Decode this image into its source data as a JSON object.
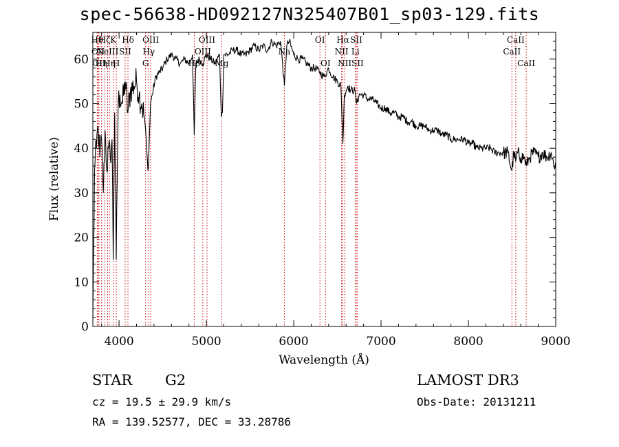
{
  "chart_data": {
    "type": "line",
    "title": "spec-56638-HD092127N325407B01_sp03-129.fits",
    "xlabel": "Wavelength (Å)",
    "ylabel": "Flux (relative)",
    "xlim": [
      3700,
      9000
    ],
    "ylim": [
      0,
      66
    ],
    "xticks": [
      4000,
      5000,
      6000,
      7000,
      8000,
      9000
    ],
    "yticks": [
      0,
      10,
      20,
      30,
      40,
      50,
      60
    ],
    "series": [
      {
        "name": "spectrum",
        "x": [
          3700,
          3720,
          3740,
          3760,
          3780,
          3800,
          3820,
          3840,
          3860,
          3880,
          3900,
          3920,
          3933,
          3950,
          3968,
          3990,
          4010,
          4040,
          4070,
          4101,
          4130,
          4170,
          4200,
          4230,
          4260,
          4290,
          4310,
          4330,
          4340,
          4360,
          4380,
          4420,
          4460,
          4500,
          4550,
          4600,
          4650,
          4700,
          4750,
          4800,
          4840,
          4861,
          4880,
          4920,
          4960,
          5000,
          5050,
          5100,
          5150,
          5172,
          5183,
          5200,
          5250,
          5300,
          5350,
          5400,
          5450,
          5500,
          5550,
          5600,
          5650,
          5700,
          5750,
          5800,
          5850,
          5893,
          5920,
          5950,
          6000,
          6050,
          6100,
          6150,
          6200,
          6250,
          6300,
          6350,
          6400,
          6450,
          6500,
          6540,
          6563,
          6580,
          6620,
          6650,
          6700,
          6720,
          6750,
          6800,
          6850,
          6900,
          6950,
          7000,
          7050,
          7100,
          7150,
          7200,
          7250,
          7300,
          7350,
          7400,
          7450,
          7500,
          7550,
          7600,
          7650,
          7700,
          7750,
          7800,
          7850,
          7900,
          7950,
          8000,
          8050,
          8100,
          8150,
          8200,
          8250,
          8300,
          8350,
          8400,
          8450,
          8498,
          8520,
          8542,
          8560,
          8600,
          8640,
          8662,
          8700,
          8750,
          8800,
          8850,
          8900,
          8950,
          8980,
          9000
        ],
        "y": [
          2,
          35,
          40,
          45,
          38,
          42,
          30,
          44,
          35,
          40,
          38,
          42,
          15,
          48,
          15,
          50,
          52,
          50,
          55,
          48,
          53,
          54,
          55,
          52,
          50,
          47,
          42,
          35,
          38,
          50,
          52,
          56,
          57,
          58,
          60,
          61,
          60,
          59,
          60,
          59,
          61,
          43,
          59,
          60,
          59,
          61,
          60,
          59,
          61,
          47,
          48,
          61,
          61,
          62,
          62,
          61,
          61,
          62,
          63,
          62,
          63,
          62,
          64,
          63,
          64,
          54,
          63,
          64,
          61,
          60,
          60,
          59,
          58,
          58,
          57,
          56,
          58,
          56,
          55,
          54,
          41,
          52,
          54,
          53,
          53,
          50,
          52,
          52,
          51,
          51,
          50,
          49,
          49,
          48,
          48,
          47,
          47,
          46,
          46,
          45,
          45,
          45,
          44,
          44,
          44,
          43,
          43,
          42,
          42,
          42,
          42,
          41,
          41,
          40,
          40,
          40,
          40,
          39,
          39,
          39,
          39,
          35,
          39,
          37,
          39,
          38,
          38,
          36,
          38,
          39,
          38,
          39,
          38,
          39,
          36,
          37
        ]
      }
    ],
    "lines": [
      {
        "x": 3750,
        "label": "Hθ",
        "pos": "top"
      },
      {
        "x": 3760,
        "label": "OII",
        "pos": "upper"
      },
      {
        "x": 3770,
        "label": "OII",
        "pos": "lower"
      },
      {
        "x": 3798,
        "label": "Hη",
        "pos": "lower"
      },
      {
        "x": 3835,
        "label": "Hζ",
        "pos": "top"
      },
      {
        "x": 3869,
        "label": "NeIII",
        "pos": "upper"
      },
      {
        "x": 3889,
        "label": "Hη",
        "pos": "lower"
      },
      {
        "x": 3934,
        "label": "K",
        "pos": "top"
      },
      {
        "x": 3969,
        "label": "H",
        "pos": "lower"
      },
      {
        "x": 4070,
        "label": "SII",
        "pos": "upper"
      },
      {
        "x": 4102,
        "label": "Hδ",
        "pos": "top"
      },
      {
        "x": 4304,
        "label": "G",
        "pos": "lower"
      },
      {
        "x": 4340,
        "label": "Hγ",
        "pos": "upper"
      },
      {
        "x": 4363,
        "label": "OIII",
        "pos": "top"
      },
      {
        "x": 4861,
        "label": "Hβ",
        "pos": "lower"
      },
      {
        "x": 4959,
        "label": "OIII",
        "pos": "upper"
      },
      {
        "x": 5007,
        "label": "OIII",
        "pos": "top"
      },
      {
        "x": 5175,
        "label": "Mg",
        "pos": "lower"
      },
      {
        "x": 5893,
        "label": "Na",
        "pos": "upper"
      },
      {
        "x": 6300,
        "label": "OI",
        "pos": "top"
      },
      {
        "x": 6364,
        "label": "OI",
        "pos": "lower"
      },
      {
        "x": 6548,
        "label": "NII",
        "pos": "upper"
      },
      {
        "x": 6563,
        "label": "Hα",
        "pos": "top"
      },
      {
        "x": 6583,
        "label": "NII",
        "pos": "lower"
      },
      {
        "x": 6707,
        "label": "Li",
        "pos": "upper"
      },
      {
        "x": 6716,
        "label": "SII",
        "pos": "top"
      },
      {
        "x": 6731,
        "label": "SII",
        "pos": "lower"
      },
      {
        "x": 8498,
        "label": "CaII",
        "pos": "upper"
      },
      {
        "x": 8542,
        "label": "CaII",
        "pos": "top"
      },
      {
        "x": 8662,
        "label": "CaII",
        "pos": "lower"
      }
    ]
  },
  "info": {
    "class": "STAR",
    "subclass": "G2",
    "survey": "LAMOST DR3",
    "cz": "cz = 19.5 ± 29.9 km/s",
    "obsdate": "Obs-Date: 20131211",
    "radec": "RA = 139.52577, DEC =  33.28786"
  },
  "colors": {
    "line": "#000000",
    "marker": "#cc0000"
  }
}
